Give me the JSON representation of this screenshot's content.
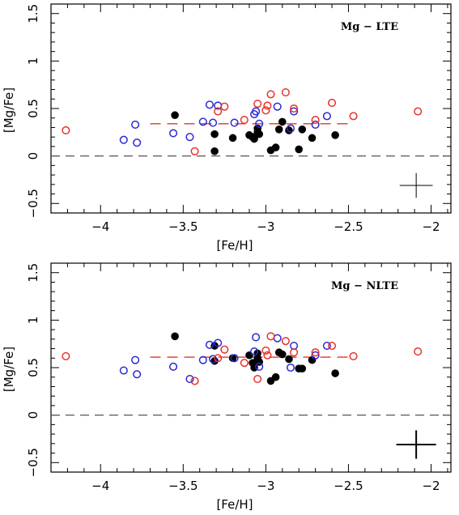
{
  "chart_data": [
    {
      "type": "scatter",
      "title": "Mg − LTE",
      "xlabel": "[Fe/H]",
      "ylabel": "[Mg/Fe]",
      "xlim": [
        -4.3,
        -1.88
      ],
      "ylim": [
        -0.6,
        1.6
      ],
      "xticks": [
        "−4",
        "−3.5",
        "−3",
        "−2.5",
        "−2"
      ],
      "xtick_values": [
        -4,
        -3.5,
        -3,
        -2.5,
        -2
      ],
      "yticks": [
        "−0.5",
        "0",
        "0.5",
        "1",
        "1.5"
      ],
      "ytick_values": [
        -0.5,
        0,
        0.5,
        1,
        1.5
      ],
      "zero_line": 0,
      "mean_line": {
        "value": 0.34,
        "x": [
          -3.7,
          -2.47
        ],
        "color": "#e8322a"
      },
      "error_bar": {
        "x": -2.09,
        "y": -0.31,
        "xerr": 0.1,
        "yerr": 0.13
      },
      "series": [
        {
          "marker": "filled",
          "color": "#000000",
          "points": [
            [
              -3.55,
              0.43
            ],
            [
              -3.31,
              0.23
            ],
            [
              -3.31,
              0.05
            ],
            [
              -3.2,
              0.19
            ],
            [
              -3.1,
              0.22
            ],
            [
              -3.08,
              0.2
            ],
            [
              -3.07,
              0.18
            ],
            [
              -3.05,
              0.25
            ],
            [
              -3.05,
              0.29
            ],
            [
              -3.04,
              0.23
            ],
            [
              -2.97,
              0.06
            ],
            [
              -2.94,
              0.09
            ],
            [
              -2.92,
              0.28
            ],
            [
              -2.9,
              0.36
            ],
            [
              -2.86,
              0.27
            ],
            [
              -2.8,
              0.07
            ],
            [
              -2.78,
              0.28
            ],
            [
              -2.72,
              0.19
            ],
            [
              -2.58,
              0.22
            ]
          ]
        },
        {
          "marker": "open",
          "color": "#2a2ad6",
          "points": [
            [
              -3.86,
              0.17
            ],
            [
              -3.79,
              0.33
            ],
            [
              -3.78,
              0.14
            ],
            [
              -3.56,
              0.24
            ],
            [
              -3.46,
              0.2
            ],
            [
              -3.38,
              0.36
            ],
            [
              -3.34,
              0.54
            ],
            [
              -3.32,
              0.35
            ],
            [
              -3.29,
              0.53
            ],
            [
              -3.19,
              0.35
            ],
            [
              -3.07,
              0.44
            ],
            [
              -3.06,
              0.47
            ],
            [
              -3.04,
              0.34
            ],
            [
              -2.93,
              0.52
            ],
            [
              -2.85,
              0.29
            ],
            [
              -2.83,
              0.47
            ],
            [
              -2.7,
              0.33
            ],
            [
              -2.63,
              0.42
            ]
          ]
        },
        {
          "marker": "open",
          "color": "#e8322a",
          "points": [
            [
              -4.21,
              0.27
            ],
            [
              -3.43,
              0.05
            ],
            [
              -3.29,
              0.47
            ],
            [
              -3.25,
              0.52
            ],
            [
              -3.13,
              0.38
            ],
            [
              -3.05,
              0.55
            ],
            [
              -3.0,
              0.48
            ],
            [
              -2.99,
              0.53
            ],
            [
              -2.97,
              0.65
            ],
            [
              -2.88,
              0.67
            ],
            [
              -2.83,
              0.5
            ],
            [
              -2.7,
              0.38
            ],
            [
              -2.6,
              0.56
            ],
            [
              -2.47,
              0.42
            ],
            [
              -2.08,
              0.47
            ]
          ]
        }
      ]
    },
    {
      "type": "scatter",
      "title": "Mg − NLTE",
      "xlabel": "[Fe/H]",
      "ylabel": "[Mg/Fe]",
      "xlim": [
        -4.3,
        -1.88
      ],
      "ylim": [
        -0.6,
        1.6
      ],
      "xticks": [
        "−4",
        "−3.5",
        "−3",
        "−2.5",
        "−2"
      ],
      "xtick_values": [
        -4,
        -3.5,
        -3,
        -2.5,
        -2
      ],
      "yticks": [
        "−0.5",
        "0",
        "0.5",
        "1",
        "1.5"
      ],
      "ytick_values": [
        -0.5,
        0,
        0.5,
        1,
        1.5
      ],
      "zero_line": 0,
      "mean_line": {
        "value": 0.61,
        "x": [
          -3.7,
          -2.47
        ],
        "color": "#e8322a"
      },
      "error_bar": {
        "x": -2.09,
        "y": -0.31,
        "xerr": 0.12,
        "yerr": 0.15
      },
      "series": [
        {
          "marker": "filled",
          "color": "#000000",
          "points": [
            [
              -3.55,
              0.83
            ],
            [
              -3.31,
              0.73
            ],
            [
              -3.31,
              0.57
            ],
            [
              -3.2,
              0.6
            ],
            [
              -3.1,
              0.63
            ],
            [
              -3.08,
              0.55
            ],
            [
              -3.07,
              0.5
            ],
            [
              -3.05,
              0.65
            ],
            [
              -3.05,
              0.6
            ],
            [
              -3.04,
              0.56
            ],
            [
              -2.97,
              0.36
            ],
            [
              -2.94,
              0.4
            ],
            [
              -2.92,
              0.66
            ],
            [
              -2.9,
              0.64
            ],
            [
              -2.86,
              0.59
            ],
            [
              -2.8,
              0.49
            ],
            [
              -2.78,
              0.49
            ],
            [
              -2.72,
              0.58
            ],
            [
              -2.58,
              0.44
            ]
          ]
        },
        {
          "marker": "open",
          "color": "#2a2ad6",
          "points": [
            [
              -3.86,
              0.47
            ],
            [
              -3.79,
              0.58
            ],
            [
              -3.78,
              0.43
            ],
            [
              -3.56,
              0.51
            ],
            [
              -3.46,
              0.38
            ],
            [
              -3.38,
              0.58
            ],
            [
              -3.34,
              0.74
            ],
            [
              -3.32,
              0.59
            ],
            [
              -3.29,
              0.76
            ],
            [
              -3.19,
              0.6
            ],
            [
              -3.07,
              0.67
            ],
            [
              -3.06,
              0.82
            ],
            [
              -3.04,
              0.51
            ],
            [
              -2.93,
              0.81
            ],
            [
              -2.85,
              0.5
            ],
            [
              -2.83,
              0.73
            ],
            [
              -2.7,
              0.63
            ],
            [
              -2.63,
              0.73
            ]
          ]
        },
        {
          "marker": "open",
          "color": "#e8322a",
          "points": [
            [
              -4.21,
              0.62
            ],
            [
              -3.43,
              0.36
            ],
            [
              -3.29,
              0.6
            ],
            [
              -3.25,
              0.69
            ],
            [
              -3.13,
              0.55
            ],
            [
              -3.05,
              0.38
            ],
            [
              -3.0,
              0.68
            ],
            [
              -2.99,
              0.63
            ],
            [
              -2.97,
              0.83
            ],
            [
              -2.88,
              0.78
            ],
            [
              -2.83,
              0.66
            ],
            [
              -2.7,
              0.66
            ],
            [
              -2.6,
              0.73
            ],
            [
              -2.47,
              0.62
            ],
            [
              -2.08,
              0.67
            ]
          ]
        }
      ]
    }
  ]
}
